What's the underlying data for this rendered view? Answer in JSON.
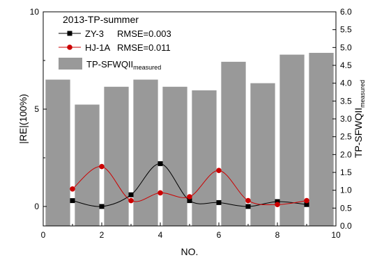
{
  "chart_data": {
    "type": "bar+line",
    "legend": {
      "title": "2013-TP-summer",
      "entries": [
        {
          "name": "ZY-3",
          "label": "RMSE=0.003"
        },
        {
          "name": "HJ-1A",
          "label": "RMSE=0.011"
        },
        {
          "name": "TP-SFWQII",
          "subscript": "measured"
        }
      ],
      "placement": "top-left"
    },
    "xlabel": "NO.",
    "ylabel_left": "|RE|(100%)",
    "ylabel_right": {
      "main": "TP-SFWQII",
      "subscript": "measured"
    },
    "xlim": [
      0,
      10
    ],
    "ylim_left": [
      -1,
      10
    ],
    "ylim_right": [
      0,
      6
    ],
    "x_ticks": [
      "0",
      "2",
      "4",
      "6",
      "8",
      "10"
    ],
    "y_left_ticks": [
      "0",
      "5",
      "10"
    ],
    "y_right_ticks": [
      "0.0",
      "0.5",
      "1.0",
      "1.5",
      "2.0",
      "2.5",
      "3.0",
      "3.5",
      "4.0",
      "4.5",
      "5.0",
      "5.5",
      "6.0"
    ],
    "grid": false,
    "bars": {
      "name": "TP-SFWQII measured",
      "axis": "right",
      "x": [
        0.5,
        1.5,
        2.5,
        3.5,
        4.5,
        5.5,
        6.5,
        7.5,
        8.5,
        9.5
      ],
      "values": [
        4.1,
        3.4,
        3.9,
        4.1,
        3.9,
        3.8,
        4.6,
        4.0,
        4.8,
        4.85
      ],
      "color": "#999999"
    },
    "series": [
      {
        "name": "ZY-3",
        "axis": "left",
        "x": [
          1,
          2,
          3,
          4,
          5,
          6,
          7,
          8,
          9
        ],
        "values": [
          0.3,
          0.0,
          0.6,
          2.2,
          0.3,
          0.2,
          0.0,
          0.25,
          0.1
        ],
        "color": "#000000",
        "marker": "square"
      },
      {
        "name": "HJ-1A",
        "axis": "left",
        "x": [
          1,
          2,
          3,
          4,
          5,
          6,
          7,
          8,
          9
        ],
        "values": [
          0.9,
          2.05,
          0.3,
          0.7,
          0.5,
          1.85,
          0.3,
          0.1,
          0.3
        ],
        "color": "#cc0000",
        "marker": "circle"
      }
    ]
  }
}
